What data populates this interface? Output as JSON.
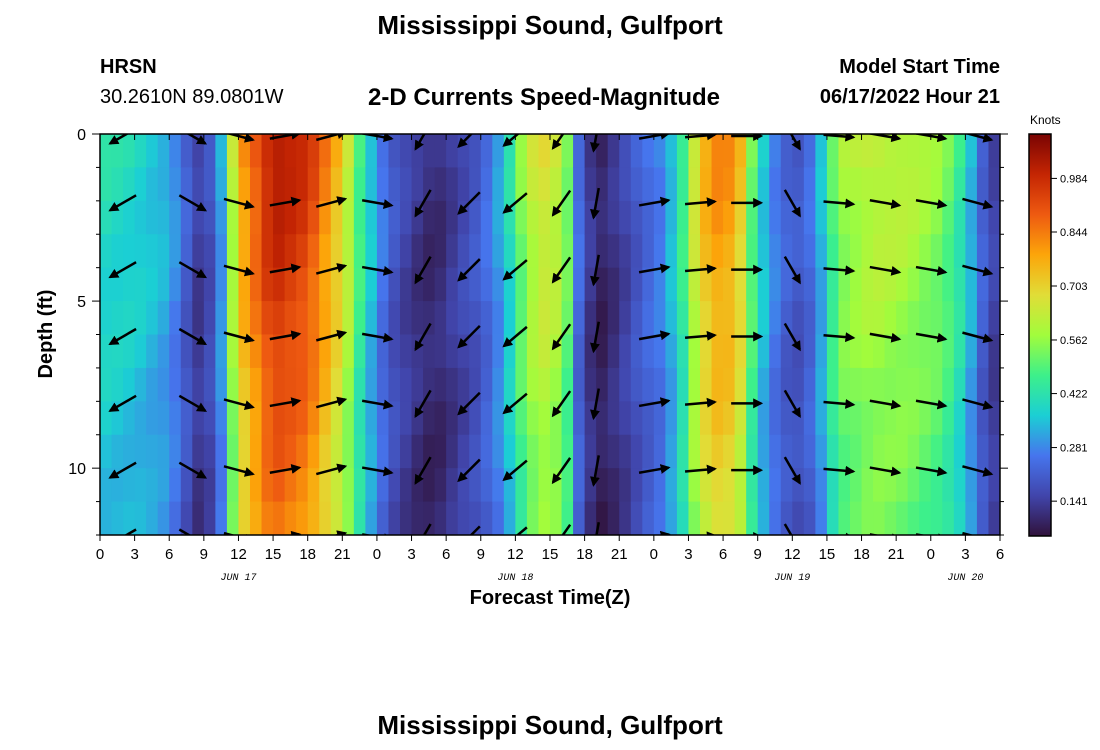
{
  "page": {
    "title": "Mississippi Sound, Gulfport",
    "bottom_title": "Mississippi Sound, Gulfport",
    "station_code": "HRSN",
    "station_coords": "30.2610N  89.0801W",
    "subtitle": "2-D Currents Speed-Magnitude",
    "model_label": "Model Start Time",
    "model_time": "06/17/2022 Hour 21"
  },
  "chart_data": {
    "type": "heatmap",
    "title": "2-D Currents Speed-Magnitude",
    "xlabel": "Forecast Time(Z)",
    "ylabel": "Depth (ft)",
    "x_unit": "hours from 00Z JUN 17",
    "x_range": [
      0,
      78
    ],
    "y_range": [
      0,
      12
    ],
    "y_ticks": [
      0,
      5,
      10
    ],
    "x_ticks": [
      {
        "h": 0,
        "label": "0"
      },
      {
        "h": 3,
        "label": "3"
      },
      {
        "h": 6,
        "label": "6"
      },
      {
        "h": 9,
        "label": "9"
      },
      {
        "h": 12,
        "label": "12"
      },
      {
        "h": 15,
        "label": "15"
      },
      {
        "h": 18,
        "label": "18"
      },
      {
        "h": 21,
        "label": "21"
      },
      {
        "h": 24,
        "label": "0"
      },
      {
        "h": 27,
        "label": "3"
      },
      {
        "h": 30,
        "label": "6"
      },
      {
        "h": 33,
        "label": "9"
      },
      {
        "h": 36,
        "label": "12"
      },
      {
        "h": 39,
        "label": "15"
      },
      {
        "h": 42,
        "label": "18"
      },
      {
        "h": 45,
        "label": "21"
      },
      {
        "h": 48,
        "label": "0"
      },
      {
        "h": 51,
        "label": "3"
      },
      {
        "h": 54,
        "label": "6"
      },
      {
        "h": 57,
        "label": "9"
      },
      {
        "h": 60,
        "label": "12"
      },
      {
        "h": 63,
        "label": "15"
      },
      {
        "h": 66,
        "label": "18"
      },
      {
        "h": 69,
        "label": "21"
      },
      {
        "h": 72,
        "label": "0"
      },
      {
        "h": 75,
        "label": "3"
      },
      {
        "h": 78,
        "label": "6"
      }
    ],
    "date_labels": [
      {
        "h": 12,
        "label": "JUN 17"
      },
      {
        "h": 36,
        "label": "JUN 18"
      },
      {
        "h": 60,
        "label": "JUN 19"
      },
      {
        "h": 75,
        "label": "JUN 20"
      }
    ],
    "colorbar": {
      "unit": "Knots",
      "min": 0.05,
      "max": 1.1,
      "ticks": [
        0.141,
        0.281,
        0.422,
        0.562,
        0.703,
        0.844,
        0.984
      ]
    },
    "speed_profile": [
      {
        "h": 0,
        "s": 0.42
      },
      {
        "h": 3,
        "s": 0.4
      },
      {
        "h": 6,
        "s": 0.34
      },
      {
        "h": 8,
        "s": 0.18
      },
      {
        "h": 9,
        "s": 0.12
      },
      {
        "h": 10.5,
        "s": 0.32
      },
      {
        "h": 12,
        "s": 0.78
      },
      {
        "h": 15,
        "s": 1.05
      },
      {
        "h": 18,
        "s": 0.98
      },
      {
        "h": 21,
        "s": 0.72
      },
      {
        "h": 23,
        "s": 0.42
      },
      {
        "h": 25,
        "s": 0.22
      },
      {
        "h": 27,
        "s": 0.14
      },
      {
        "h": 29,
        "s": 0.1
      },
      {
        "h": 31,
        "s": 0.16
      },
      {
        "h": 33,
        "s": 0.22
      },
      {
        "h": 35,
        "s": 0.35
      },
      {
        "h": 37,
        "s": 0.62
      },
      {
        "h": 39,
        "s": 0.7
      },
      {
        "h": 40.5,
        "s": 0.55
      },
      {
        "h": 41.5,
        "s": 0.25
      },
      {
        "h": 43,
        "s": 0.08
      },
      {
        "h": 45,
        "s": 0.14
      },
      {
        "h": 47,
        "s": 0.23
      },
      {
        "h": 49,
        "s": 0.3
      },
      {
        "h": 50.5,
        "s": 0.48
      },
      {
        "h": 52,
        "s": 0.75
      },
      {
        "h": 54,
        "s": 0.86
      },
      {
        "h": 55.5,
        "s": 0.74
      },
      {
        "h": 57,
        "s": 0.42
      },
      {
        "h": 59,
        "s": 0.24
      },
      {
        "h": 61,
        "s": 0.2
      },
      {
        "h": 62.5,
        "s": 0.35
      },
      {
        "h": 64,
        "s": 0.58
      },
      {
        "h": 67,
        "s": 0.64
      },
      {
        "h": 70,
        "s": 0.62
      },
      {
        "h": 73,
        "s": 0.56
      },
      {
        "h": 75,
        "s": 0.42
      },
      {
        "h": 76,
        "s": 0.28
      },
      {
        "h": 77,
        "s": 0.18
      },
      {
        "h": 78,
        "s": 0.14
      }
    ],
    "arrow_times": [
      2,
      8,
      12,
      16,
      20,
      24,
      28,
      32,
      36,
      40,
      43,
      48,
      52,
      56,
      60,
      64,
      68,
      72,
      76
    ],
    "arrow_depths": [
      0,
      2,
      4,
      6,
      8,
      10,
      12
    ],
    "arrow_dirs_deg": [
      -150,
      -30,
      -15,
      10,
      15,
      -10,
      -120,
      -135,
      -140,
      -125,
      -100,
      10,
      5,
      0,
      -60,
      -5,
      -10,
      -10,
      -15
    ]
  }
}
